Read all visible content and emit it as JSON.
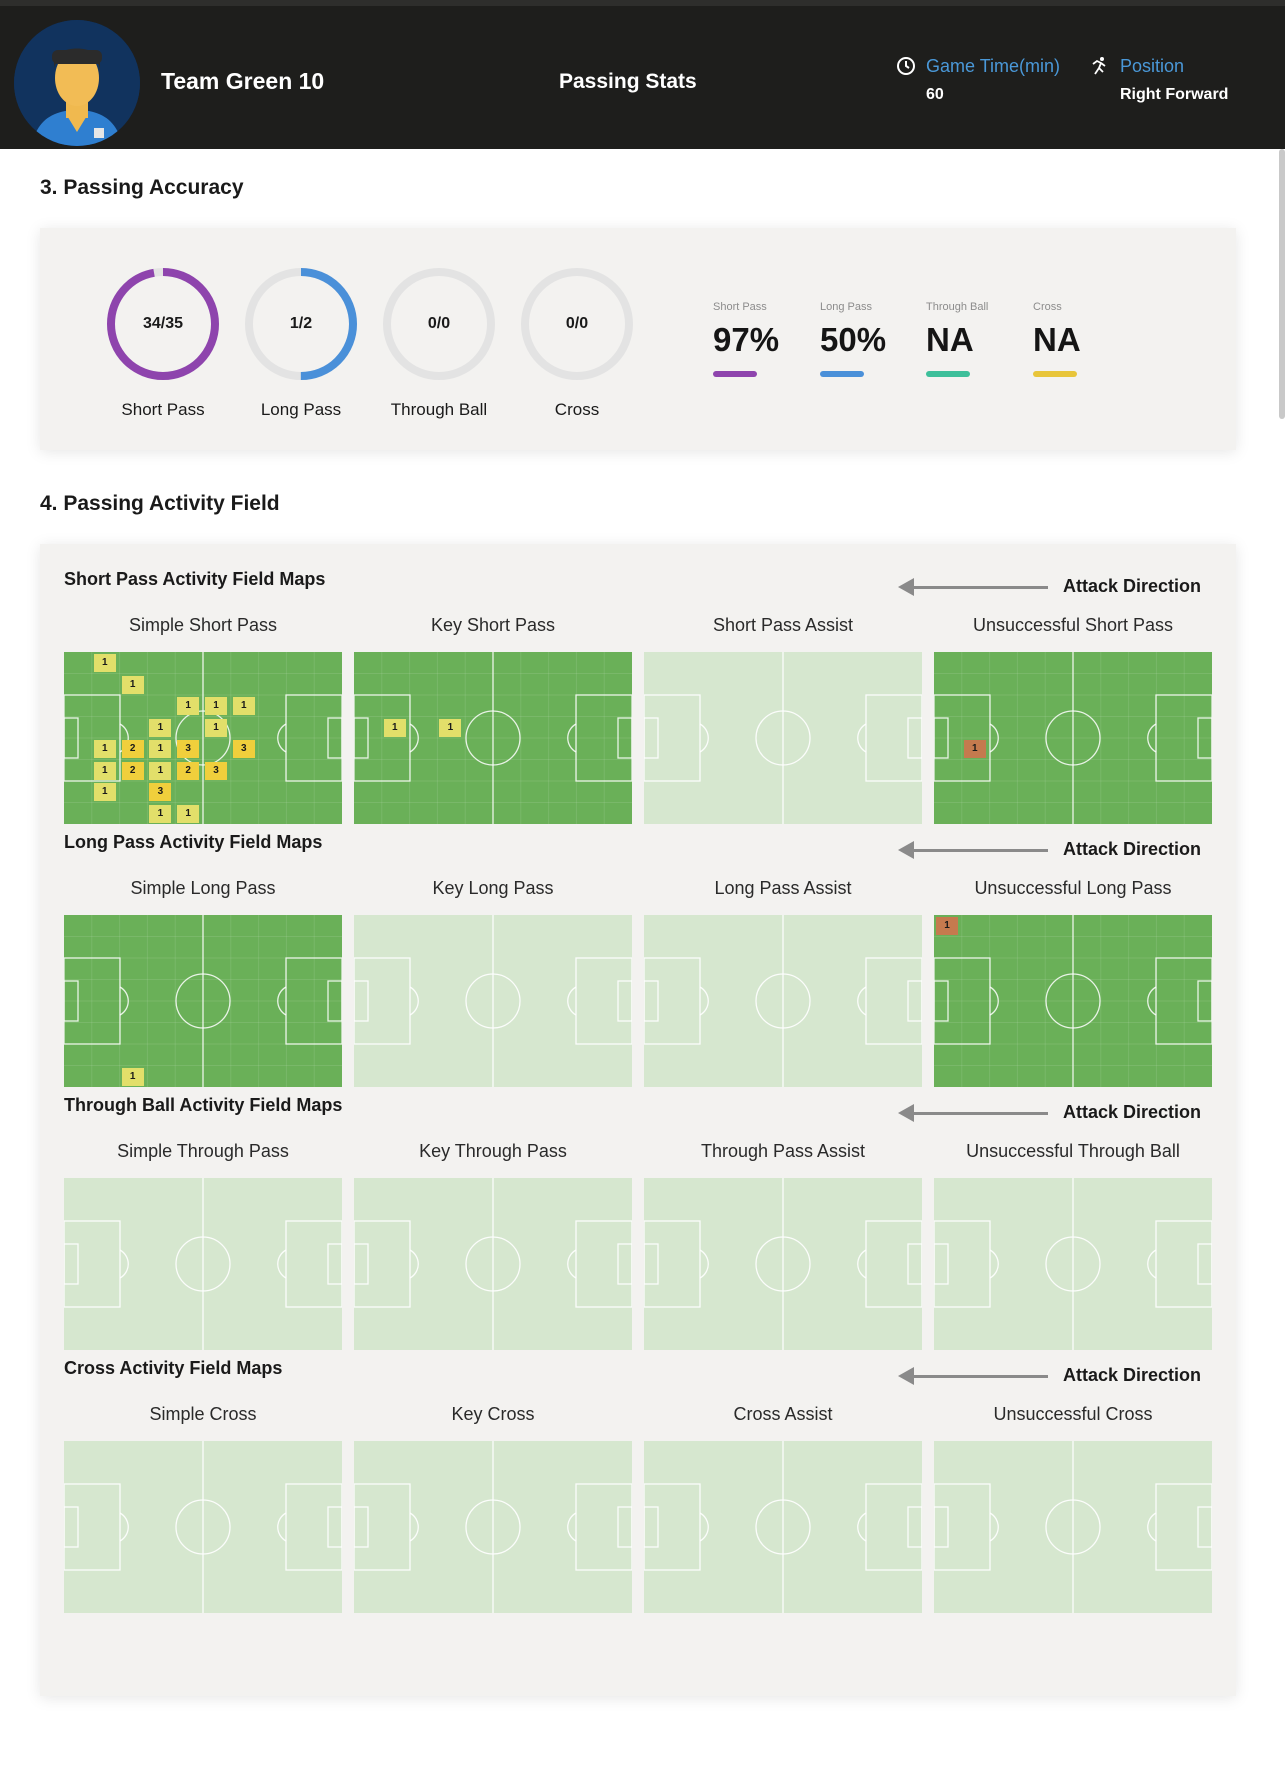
{
  "header": {
    "player_name": "Team Green 10",
    "page_title": "Passing Stats",
    "game_time_label": "Game Time(min)",
    "game_time_value": "60",
    "position_label": "Position",
    "position_value": "Right Forward",
    "accent_color": "#4a98d8"
  },
  "accuracy": {
    "title": "3. Passing Accuracy",
    "rings": [
      {
        "value": "34/35",
        "label": "Short Pass",
        "completed": 34,
        "attempted": 35,
        "color": "#8e44ad"
      },
      {
        "value": "1/2",
        "label": "Long Pass",
        "completed": 1,
        "attempted": 2,
        "color": "#4a90d9"
      },
      {
        "value": "0/0",
        "label": "Through Ball",
        "completed": 0,
        "attempted": 0,
        "color": "#3dbf9a"
      },
      {
        "value": "0/0",
        "label": "Cross",
        "completed": 0,
        "attempted": 0,
        "color": "#e8c53a"
      }
    ],
    "percentages": [
      {
        "label": "Short Pass",
        "value": "97%",
        "color": "#8e44ad"
      },
      {
        "label": "Long Pass",
        "value": "50%",
        "color": "#4a90d9"
      },
      {
        "label": "Through Ball",
        "value": "NA",
        "color": "#3dbf9a"
      },
      {
        "label": "Cross",
        "value": "NA",
        "color": "#e8c53a"
      }
    ]
  },
  "activity": {
    "title": "4. Passing Activity Field",
    "attack_direction": "Attack Direction",
    "groups": [
      {
        "title": "Short Pass Activity Field Maps",
        "maps": [
          {
            "title": "Simple Short Pass",
            "active": true,
            "cells": [
              {
                "col": 1,
                "row": 0,
                "v": "1"
              },
              {
                "col": 2,
                "row": 1,
                "v": "1"
              },
              {
                "col": 4,
                "row": 2,
                "v": "1"
              },
              {
                "col": 5,
                "row": 2,
                "v": "1"
              },
              {
                "col": 6,
                "row": 2,
                "v": "1"
              },
              {
                "col": 3,
                "row": 3,
                "v": "1"
              },
              {
                "col": 5,
                "row": 3,
                "v": "1"
              },
              {
                "col": 1,
                "row": 4,
                "v": "1"
              },
              {
                "col": 2,
                "row": 4,
                "v": "2"
              },
              {
                "col": 3,
                "row": 4,
                "v": "1"
              },
              {
                "col": 4,
                "row": 4,
                "v": "3"
              },
              {
                "col": 6,
                "row": 4,
                "v": "3"
              },
              {
                "col": 1,
                "row": 5,
                "v": "1"
              },
              {
                "col": 2,
                "row": 5,
                "v": "2"
              },
              {
                "col": 3,
                "row": 5,
                "v": "1"
              },
              {
                "col": 4,
                "row": 5,
                "v": "2"
              },
              {
                "col": 5,
                "row": 5,
                "v": "3"
              },
              {
                "col": 1,
                "row": 6,
                "v": "1"
              },
              {
                "col": 3,
                "row": 6,
                "v": "3"
              },
              {
                "col": 3,
                "row": 7,
                "v": "1"
              },
              {
                "col": 4,
                "row": 7,
                "v": "1"
              }
            ]
          },
          {
            "title": "Key Short Pass",
            "active": true,
            "cells": [
              {
                "col": 1,
                "row": 3,
                "v": "1"
              },
              {
                "col": 3,
                "row": 3,
                "v": "1"
              }
            ]
          },
          {
            "title": "Short Pass Assist",
            "active": false,
            "cells": []
          },
          {
            "title": "Unsuccessful Short Pass",
            "active": true,
            "cells": [
              {
                "col": 1,
                "row": 4,
                "v": "1",
                "kind": "fail"
              }
            ]
          }
        ]
      },
      {
        "title": "Long Pass Activity Field Maps",
        "maps": [
          {
            "title": "Simple Long Pass",
            "active": true,
            "cells": [
              {
                "col": 2,
                "row": 7,
                "v": "1"
              }
            ]
          },
          {
            "title": "Key Long Pass",
            "active": false,
            "cells": []
          },
          {
            "title": "Long Pass Assist",
            "active": false,
            "cells": []
          },
          {
            "title": "Unsuccessful Long Pass",
            "active": true,
            "cells": [
              {
                "col": 0,
                "row": 0,
                "v": "1",
                "kind": "fail"
              }
            ]
          }
        ]
      },
      {
        "title": "Through Ball Activity Field Maps",
        "maps": [
          {
            "title": "Simple Through Pass",
            "active": false,
            "cells": []
          },
          {
            "title": "Key Through Pass",
            "active": false,
            "cells": []
          },
          {
            "title": "Through Pass Assist",
            "active": false,
            "cells": []
          },
          {
            "title": "Unsuccessful Through Ball",
            "active": false,
            "cells": []
          }
        ]
      },
      {
        "title": "Cross Activity Field Maps",
        "maps": [
          {
            "title": "Simple Cross",
            "active": false,
            "cells": []
          },
          {
            "title": "Key Cross",
            "active": false,
            "cells": []
          },
          {
            "title": "Cross Assist",
            "active": false,
            "cells": []
          },
          {
            "title": "Unsuccessful Cross",
            "active": false,
            "cells": []
          }
        ]
      }
    ]
  },
  "colors": {
    "pitch_active": "#6ab058",
    "pitch_inactive": "#d6e7cf",
    "cell_light": "#e2df6a",
    "cell_strong": "#f0cf3c",
    "cell_fail": "#c57a4e"
  }
}
